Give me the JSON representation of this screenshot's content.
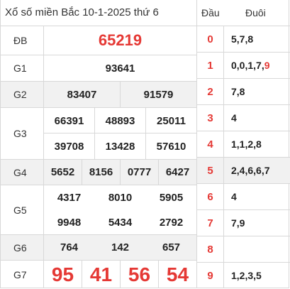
{
  "title": "Xổ số miền Bắc 10-1-2025 thứ 6",
  "prizes": {
    "db": {
      "label": "ĐB",
      "numbers": [
        "65219"
      ]
    },
    "g1": {
      "label": "G1",
      "numbers": [
        "93641"
      ]
    },
    "g2": {
      "label": "G2",
      "numbers": [
        "83407",
        "91579"
      ]
    },
    "g3": {
      "label": "G3",
      "numbers": [
        "66391",
        "48893",
        "25011",
        "39708",
        "13428",
        "57610"
      ]
    },
    "g4": {
      "label": "G4",
      "numbers": [
        "5652",
        "8156",
        "0777",
        "6427"
      ]
    },
    "g5": {
      "label": "G5",
      "numbers": [
        "4317",
        "8010",
        "5905",
        "9948",
        "5434",
        "2792"
      ]
    },
    "g6": {
      "label": "G6",
      "numbers": [
        "764",
        "142",
        "657"
      ]
    },
    "g7": {
      "label": "G7",
      "numbers": [
        "95",
        "41",
        "56",
        "54"
      ]
    }
  },
  "loto": {
    "head_label": "Đầu",
    "tail_label": "Đuôi",
    "rows": [
      {
        "head": "0",
        "tails": "5,7,8",
        "tails_hl": ""
      },
      {
        "head": "1",
        "tails": "0,0,1,7,",
        "tails_hl": "9"
      },
      {
        "head": "2",
        "tails": "7,8",
        "tails_hl": ""
      },
      {
        "head": "3",
        "tails": "4",
        "tails_hl": ""
      },
      {
        "head": "4",
        "tails": "1,1,2,8",
        "tails_hl": ""
      },
      {
        "head": "5",
        "tails": "2,4,6,6,7",
        "tails_hl": ""
      },
      {
        "head": "6",
        "tails": "4",
        "tails_hl": ""
      },
      {
        "head": "7",
        "tails": "7,9",
        "tails_hl": ""
      },
      {
        "head": "8",
        "tails": "",
        "tails_hl": ""
      },
      {
        "head": "9",
        "tails": "1,2,3,5",
        "tails_hl": ""
      }
    ]
  },
  "colors": {
    "accent": "#e53935",
    "row_alt": "#f1f1f1",
    "border": "#d8d8d8"
  }
}
